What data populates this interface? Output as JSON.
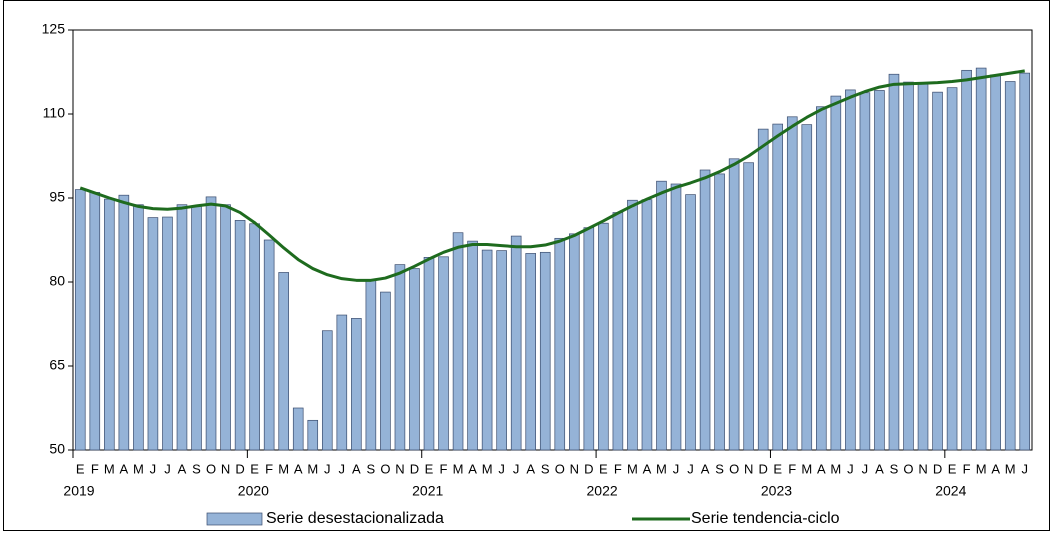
{
  "chart_data": {
    "type": "bar_line",
    "categories": [
      "E",
      "F",
      "M",
      "A",
      "M",
      "J",
      "J",
      "A",
      "S",
      "O",
      "N",
      "D",
      "E",
      "F",
      "M",
      "A",
      "M",
      "J",
      "J",
      "A",
      "S",
      "O",
      "N",
      "D",
      "E",
      "F",
      "M",
      "A",
      "M",
      "J",
      "J",
      "A",
      "S",
      "O",
      "N",
      "D",
      "E",
      "F",
      "M",
      "A",
      "M",
      "J",
      "J",
      "A",
      "S",
      "O",
      "N",
      "D",
      "E",
      "F",
      "M",
      "A",
      "M",
      "J",
      "J",
      "A",
      "S",
      "O",
      "N",
      "D",
      "E",
      "F",
      "M",
      "A",
      "M",
      "J"
    ],
    "years": [
      "2019",
      "2020",
      "2021",
      "2022",
      "2023",
      "2024"
    ],
    "ylim": [
      50,
      125
    ],
    "yticks": [
      50,
      65,
      80,
      95,
      110,
      125
    ],
    "series": [
      {
        "name": "Serie desestacionalizada",
        "kind": "bar",
        "color": "#95b3d7",
        "values": [
          96.5,
          96,
          94.8,
          95.5,
          93.8,
          91.5,
          91.6,
          93.8,
          93.5,
          95.2,
          93.8,
          91,
          90.4,
          87.5,
          81.7,
          57.5,
          55.3,
          71.3,
          74.1,
          73.5,
          80.3,
          78.2,
          83.1,
          82.4,
          84.4,
          84.5,
          88.8,
          87.3,
          85.7,
          85.6,
          88.2,
          85.1,
          85.3,
          87.8,
          88.6,
          89.7,
          90.5,
          92.4,
          94.6,
          94.7,
          98,
          97.5,
          95.6,
          100,
          99.3,
          102,
          101.3,
          107.3,
          108.2,
          109.5,
          108.1,
          111.3,
          113.2,
          114.3,
          113.8,
          114.2,
          117.1,
          115.7,
          115.5,
          113.9,
          114.7,
          117.8,
          118.2,
          117,
          115.8,
          117.3
        ]
      },
      {
        "name": "Serie tendencia-ciclo",
        "kind": "line",
        "color": "#1e6b1e",
        "values": [
          96.8,
          95.9,
          95,
          94.2,
          93.5,
          93.1,
          93,
          93.2,
          93.6,
          93.9,
          93.6,
          92.4,
          90.6,
          88.4,
          86.1,
          84,
          82.4,
          81.3,
          80.6,
          80.3,
          80.3,
          80.7,
          81.6,
          82.8,
          84.1,
          85.3,
          86.2,
          86.7,
          86.7,
          86.5,
          86.3,
          86.3,
          86.6,
          87.3,
          88.3,
          89.6,
          90.9,
          92.3,
          93.6,
          94.8,
          95.9,
          96.9,
          97.7,
          98.6,
          99.7,
          101,
          102.5,
          104.3,
          106.1,
          107.8,
          109.4,
          110.8,
          111.9,
          113,
          114,
          114.8,
          115.3,
          115.4,
          115.5,
          115.6,
          115.8,
          116.1,
          116.5,
          116.9,
          117.3,
          117.7
        ]
      }
    ]
  }
}
